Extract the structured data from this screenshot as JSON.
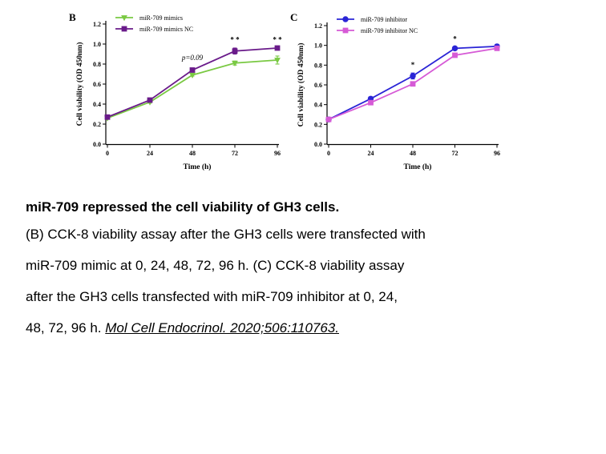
{
  "chart_data": [
    {
      "type": "line",
      "panel_label": "B",
      "x": [
        0,
        24,
        48,
        72,
        96
      ],
      "xlabel": "Time (h)",
      "ylabel": "Cell viability (OD 450nm)",
      "ylim": [
        0,
        1.2
      ],
      "yticks": [
        "0.0",
        "0.2",
        "0.4",
        "0.6",
        "0.8",
        "1.0",
        "1.2"
      ],
      "xticks": [
        "0",
        "24",
        "48",
        "72",
        "96"
      ],
      "legend_position": "top-left",
      "series": [
        {
          "name": "miR-709 mimics",
          "color": "#7ac943",
          "marker": "triangle-down",
          "values": [
            0.26,
            0.42,
            0.69,
            0.81,
            0.84
          ],
          "errors": [
            0.01,
            0.01,
            0.01,
            0.02,
            0.04
          ]
        },
        {
          "name": "miR-709 mimics NC",
          "color": "#6a1b8a",
          "marker": "square",
          "values": [
            0.27,
            0.44,
            0.74,
            0.93,
            0.96
          ],
          "errors": [
            0.01,
            0.01,
            0.02,
            0.03,
            0.02
          ]
        }
      ],
      "annotations": [
        {
          "x": 48,
          "y": 0.84,
          "text": "p=0.09",
          "italic": true
        },
        {
          "x": 72,
          "y": 1.02,
          "text": "* *"
        },
        {
          "x": 96,
          "y": 1.02,
          "text": "* *"
        }
      ]
    },
    {
      "type": "line",
      "panel_label": "C",
      "x": [
        0,
        24,
        48,
        72,
        96
      ],
      "xlabel": "Time (h)",
      "ylabel": "Cell viability (OD 450nm)",
      "ylim": [
        0,
        1.2
      ],
      "yticks": [
        "0.0",
        "0.2",
        "0.4",
        "0.6",
        "0.8",
        "1.0",
        "1.2"
      ],
      "xticks": [
        "0",
        "24",
        "48",
        "72",
        "96"
      ],
      "legend_position": "top-left",
      "series": [
        {
          "name": "miR-709 inhibitor",
          "color": "#2a24d6",
          "marker": "circle",
          "values": [
            0.25,
            0.46,
            0.69,
            0.97,
            0.99
          ],
          "errors": [
            0.01,
            0.01,
            0.03,
            0.01,
            0.02
          ]
        },
        {
          "name": "miR-709 inhibitor NC",
          "color": "#d65ad6",
          "marker": "square",
          "values": [
            0.25,
            0.42,
            0.61,
            0.9,
            0.97
          ],
          "errors": [
            0.01,
            0.01,
            0.01,
            0.01,
            0.02
          ]
        }
      ],
      "annotations": [
        {
          "x": 48,
          "y": 0.78,
          "text": "*"
        },
        {
          "x": 72,
          "y": 1.04,
          "text": "*"
        }
      ]
    }
  ],
  "caption": {
    "title": "miR-709 repressed the cell viability of GH3 cells.",
    "lines": [
      "(B) CCK-8 viability assay after the GH3 cells were transfected with",
      "miR-709 mimic at 0, 24, 48, 72, 96 h. (C) CCK-8 viability assay",
      "after the GH3 cells transfected with miR-709 inhibitor at 0, 24,"
    ],
    "last_line_prefix": "48, 72, 96 h.",
    "reference": "Mol Cell Endocrinol. 2020;506:110763."
  }
}
